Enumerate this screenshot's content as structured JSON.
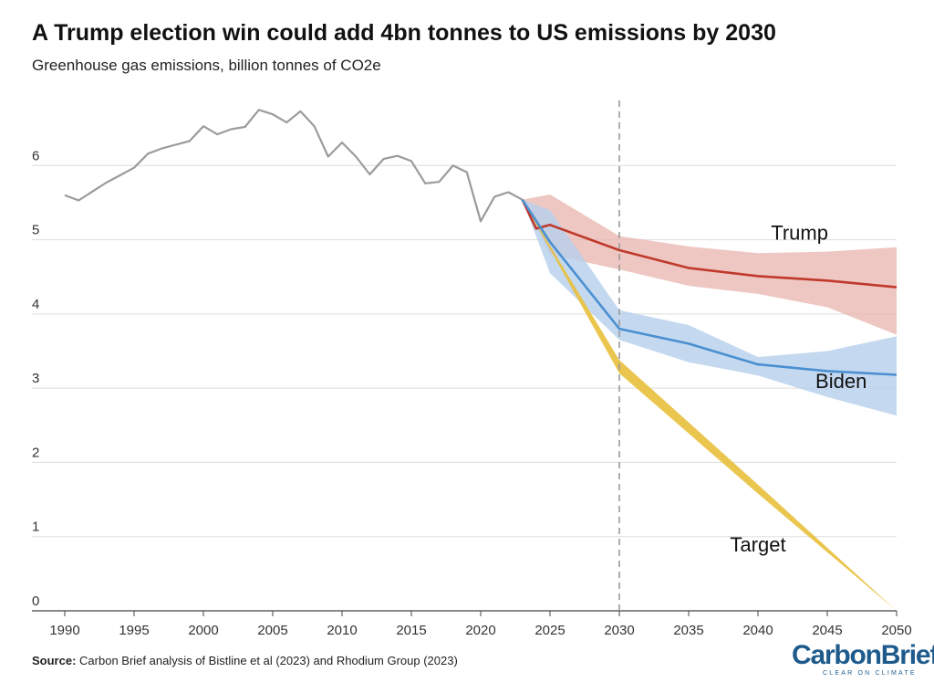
{
  "title": "A Trump election win could add 4bn tonnes to US emissions by 2030",
  "subtitle": "Greenhouse gas emissions, billion tonnes of CO2e",
  "source": {
    "label": "Source:",
    "text": "Carbon Brief analysis of Bistline et al (2023) and Rhodium Group (2023)"
  },
  "logo": {
    "wordmark": "CarbonBrief",
    "tagline": "CLEAR ON CLIMATE"
  },
  "colors": {
    "historical": "#9b9b9b",
    "trump": "#c0392b",
    "trump_band": "#e8b4ad",
    "biden": "#4a8fd0",
    "biden_band": "#b5d0ec",
    "target": "#e8c03c",
    "target_band": "#e8c03c",
    "grid": "#dddddd",
    "marker_line": "#999999"
  },
  "chart_data": {
    "type": "line",
    "title": "A Trump election win could add 4bn tonnes to US emissions by 2030",
    "subtitle": "Greenhouse gas emissions, billion tonnes of CO2e",
    "xlabel": "",
    "ylabel": "",
    "xlim": [
      1990,
      2050
    ],
    "ylim": [
      0,
      7
    ],
    "x_ticks": [
      1990,
      1995,
      2000,
      2005,
      2010,
      2015,
      2020,
      2025,
      2030,
      2035,
      2040,
      2045,
      2050
    ],
    "y_ticks": [
      0,
      1,
      2,
      3,
      4,
      5,
      6
    ],
    "grid": "horizontal",
    "vertical_marker": {
      "x": 2030,
      "style": "dashed"
    },
    "series": [
      {
        "name": "",
        "role": "historical",
        "points": [
          [
            1990,
            5.6
          ],
          [
            1991,
            5.53
          ],
          [
            1992,
            5.65
          ],
          [
            1993,
            5.77
          ],
          [
            1994,
            5.87
          ],
          [
            1995,
            5.97
          ],
          [
            1996,
            6.16
          ],
          [
            1997,
            6.23
          ],
          [
            1998,
            6.28
          ],
          [
            1999,
            6.33
          ],
          [
            2000,
            6.53
          ],
          [
            2001,
            6.42
          ],
          [
            2002,
            6.49
          ],
          [
            2003,
            6.52
          ],
          [
            2004,
            6.75
          ],
          [
            2005,
            6.69
          ],
          [
            2006,
            6.58
          ],
          [
            2007,
            6.73
          ],
          [
            2008,
            6.53
          ],
          [
            2009,
            6.12
          ],
          [
            2010,
            6.31
          ],
          [
            2011,
            6.12
          ],
          [
            2012,
            5.88
          ],
          [
            2013,
            6.09
          ],
          [
            2014,
            6.13
          ],
          [
            2015,
            6.06
          ],
          [
            2016,
            5.76
          ],
          [
            2017,
            5.78
          ],
          [
            2018,
            6.0
          ],
          [
            2019,
            5.91
          ],
          [
            2020,
            5.25
          ],
          [
            2021,
            5.58
          ],
          [
            2022,
            5.64
          ],
          [
            2023,
            5.54
          ]
        ]
      },
      {
        "name": "Trump",
        "role": "scenario",
        "points": [
          [
            2023,
            5.54
          ],
          [
            2024,
            5.15
          ],
          [
            2025,
            5.2
          ],
          [
            2030,
            4.86
          ],
          [
            2035,
            4.62
          ],
          [
            2040,
            4.51
          ],
          [
            2045,
            4.45
          ],
          [
            2050,
            4.36
          ]
        ],
        "upper": [
          [
            2023,
            5.54
          ],
          [
            2025,
            5.61
          ],
          [
            2030,
            5.05
          ],
          [
            2035,
            4.91
          ],
          [
            2040,
            4.82
          ],
          [
            2045,
            4.84
          ],
          [
            2050,
            4.9
          ]
        ],
        "lower": [
          [
            2023,
            5.54
          ],
          [
            2025,
            4.8
          ],
          [
            2030,
            4.6
          ],
          [
            2035,
            4.38
          ],
          [
            2040,
            4.27
          ],
          [
            2045,
            4.09
          ],
          [
            2050,
            3.72
          ]
        ]
      },
      {
        "name": "Biden",
        "role": "scenario",
        "points": [
          [
            2023,
            5.54
          ],
          [
            2025,
            4.97
          ],
          [
            2030,
            3.8
          ],
          [
            2035,
            3.6
          ],
          [
            2040,
            3.32
          ],
          [
            2045,
            3.23
          ],
          [
            2050,
            3.18
          ]
        ],
        "upper": [
          [
            2023,
            5.54
          ],
          [
            2025,
            5.4
          ],
          [
            2030,
            4.05
          ],
          [
            2035,
            3.85
          ],
          [
            2040,
            3.42
          ],
          [
            2045,
            3.5
          ],
          [
            2050,
            3.7
          ]
        ],
        "lower": [
          [
            2023,
            5.54
          ],
          [
            2025,
            4.55
          ],
          [
            2030,
            3.65
          ],
          [
            2035,
            3.35
          ],
          [
            2040,
            3.17
          ],
          [
            2045,
            2.88
          ],
          [
            2050,
            2.63
          ]
        ]
      },
      {
        "name": "Target",
        "role": "target",
        "points": [
          [
            2023,
            5.54
          ],
          [
            2030,
            3.28
          ],
          [
            2040,
            1.64
          ],
          [
            2050,
            0.0
          ]
        ],
        "upper": [
          [
            2023,
            5.54
          ],
          [
            2030,
            3.38
          ],
          [
            2040,
            1.7
          ],
          [
            2050,
            0.0
          ]
        ],
        "lower": [
          [
            2023,
            5.54
          ],
          [
            2030,
            3.2
          ],
          [
            2040,
            1.58
          ],
          [
            2050,
            0.0
          ]
        ]
      }
    ],
    "series_labels": [
      {
        "name": "Trump",
        "anchor": [
          2043,
          5.0
        ]
      },
      {
        "name": "Biden",
        "anchor": [
          2046,
          3.0
        ]
      },
      {
        "name": "Target",
        "anchor": [
          2040,
          0.8
        ]
      }
    ]
  }
}
